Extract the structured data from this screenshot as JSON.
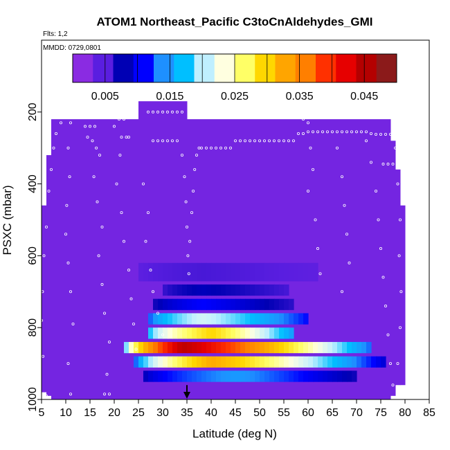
{
  "chart_data": {
    "type": "heatmap",
    "title": "ATOM1 Northeast_Pacific C3toCnAldehydes_GMI",
    "flights_label": "Flts: 1,2",
    "mmdd_label": "MMDD: 0729,0801",
    "xlabel": "Latitude (deg N)",
    "ylabel": "PSXC (mbar)",
    "xlim": [
      5,
      85
    ],
    "ylim": [
      1000,
      0
    ],
    "x_ticks": [
      5,
      10,
      15,
      20,
      25,
      30,
      35,
      40,
      45,
      50,
      55,
      60,
      65,
      70,
      75,
      80,
      85
    ],
    "y_ticks": [
      200,
      400,
      600,
      800,
      1000
    ],
    "colorbar": {
      "min": 0.0,
      "max": 0.05,
      "tick_values": [
        0.005,
        0.015,
        0.025,
        0.035,
        0.045
      ],
      "tick_labels": [
        "0.005",
        "0.015",
        "0.025",
        "0.035",
        "0.045"
      ],
      "colors": [
        "#8a2be2",
        "#5a1ee0",
        "#0000b4",
        "#0000ff",
        "#1e90ff",
        "#00bfff",
        "#bfefff",
        "#ffffe0",
        "#ffff66",
        "#ffd700",
        "#ffa500",
        "#ff7f00",
        "#ff3000",
        "#e60000",
        "#b40000",
        "#8b1a1a"
      ]
    },
    "columns": [
      {
        "lat": [
          5,
          6
        ],
        "top": 460,
        "bottom": 980,
        "cells": []
      },
      {
        "lat": [
          6,
          7
        ],
        "top": 320,
        "bottom": 990,
        "cells": []
      },
      {
        "lat": [
          7,
          25
        ],
        "top": 220,
        "bottom": 1000,
        "cells": []
      },
      {
        "lat": [
          25,
          30
        ],
        "top": 170,
        "bottom": 1000,
        "cells": []
      },
      {
        "lat": [
          30,
          35
        ],
        "top": 170,
        "bottom": 1000,
        "cells": []
      },
      {
        "lat": [
          35,
          77
        ],
        "top": 220,
        "bottom": 1000,
        "cells": []
      },
      {
        "lat": [
          77,
          78
        ],
        "top": 280,
        "bottom": 990,
        "cells": []
      },
      {
        "lat": [
          78,
          79
        ],
        "top": 360,
        "bottom": 960,
        "cells": []
      },
      {
        "lat": [
          79,
          80
        ],
        "top": 460,
        "bottom": 960,
        "cells": []
      }
    ],
    "bands": [
      {
        "lat": [
          22,
          73
        ],
        "p": [
          840,
          870
        ],
        "lat_peak": 34,
        "peak": 0.046,
        "edge": 0.012
      },
      {
        "lat": [
          24,
          76
        ],
        "p": [
          880,
          910
        ],
        "lat_peak": 40,
        "peak": 0.033,
        "edge": 0.008
      },
      {
        "lat": [
          26,
          70
        ],
        "p": [
          920,
          950
        ],
        "lat_peak": 45,
        "peak": 0.014,
        "edge": 0.006
      },
      {
        "lat": [
          27,
          60
        ],
        "p": [
          760,
          790
        ],
        "lat_peak": 38,
        "peak": 0.021,
        "edge": 0.01
      },
      {
        "lat": [
          27,
          57
        ],
        "p": [
          800,
          830
        ],
        "lat_peak": 40,
        "peak": 0.03,
        "edge": 0.014
      },
      {
        "lat": [
          28,
          57
        ],
        "p": [
          720,
          750
        ],
        "lat_peak": 38,
        "peak": 0.01,
        "edge": 0.005
      },
      {
        "lat": [
          30,
          56
        ],
        "p": [
          680,
          710
        ],
        "lat_peak": 38,
        "peak": 0.007,
        "edge": 0.004
      },
      {
        "lat": [
          25,
          62
        ],
        "p": [
          620,
          670
        ],
        "lat_peak": 38,
        "peak": 0.004,
        "edge": 0.003
      }
    ],
    "flight_track": [
      [
        27,
        200
      ],
      [
        28,
        200
      ],
      [
        29,
        200
      ],
      [
        30,
        200
      ],
      [
        31,
        200
      ],
      [
        32,
        200
      ],
      [
        33,
        200
      ],
      [
        34,
        200
      ],
      [
        28,
        280
      ],
      [
        29,
        280
      ],
      [
        30,
        280
      ],
      [
        31,
        280
      ],
      [
        32,
        280
      ],
      [
        33,
        280
      ],
      [
        34,
        320
      ],
      [
        34.5,
        380
      ],
      [
        34.8,
        450
      ],
      [
        35,
        520
      ],
      [
        35.2,
        600
      ],
      [
        35.4,
        650
      ],
      [
        35.6,
        560
      ],
      [
        36,
        480
      ],
      [
        36.3,
        420
      ],
      [
        36.6,
        360
      ],
      [
        37,
        320
      ],
      [
        37.5,
        300
      ],
      [
        38,
        300
      ],
      [
        39,
        300
      ],
      [
        40,
        300
      ],
      [
        41,
        300
      ],
      [
        42,
        300
      ],
      [
        43,
        300
      ],
      [
        44,
        300
      ],
      [
        45,
        280
      ],
      [
        46,
        280
      ],
      [
        47,
        280
      ],
      [
        48,
        280
      ],
      [
        49,
        280
      ],
      [
        50,
        280
      ],
      [
        51,
        280
      ],
      [
        52,
        280
      ],
      [
        53,
        280
      ],
      [
        54,
        280
      ],
      [
        55,
        280
      ],
      [
        56,
        280
      ],
      [
        57,
        280
      ],
      [
        58,
        260
      ],
      [
        59,
        260
      ],
      [
        60,
        255
      ],
      [
        61,
        255
      ],
      [
        62,
        255
      ],
      [
        63,
        255
      ],
      [
        64,
        255
      ],
      [
        65,
        255
      ],
      [
        66,
        255
      ],
      [
        67,
        255
      ],
      [
        68,
        255
      ],
      [
        69,
        255
      ],
      [
        70,
        255
      ],
      [
        71,
        255
      ],
      [
        72,
        255
      ],
      [
        73,
        260
      ],
      [
        74,
        262
      ],
      [
        75,
        262
      ],
      [
        76,
        262
      ],
      [
        77,
        262
      ],
      [
        75.5,
        345
      ],
      [
        76.5,
        345
      ],
      [
        77.5,
        345
      ],
      [
        9,
        230
      ],
      [
        8,
        260
      ],
      [
        7.5,
        300
      ],
      [
        7,
        360
      ],
      [
        6.5,
        420
      ],
      [
        6,
        520
      ],
      [
        5.5,
        600
      ],
      [
        5.2,
        700
      ],
      [
        5,
        780
      ],
      [
        5.3,
        880
      ],
      [
        5.5,
        990
      ],
      [
        6,
        990
      ],
      [
        11,
        230
      ],
      [
        10.5,
        300
      ],
      [
        10.8,
        380
      ],
      [
        10.2,
        460
      ],
      [
        10,
        540
      ],
      [
        10.5,
        620
      ],
      [
        11,
        700
      ],
      [
        11.5,
        790
      ],
      [
        10.5,
        900
      ],
      [
        11,
        985
      ],
      [
        14,
        240
      ],
      [
        15,
        240
      ],
      [
        16,
        240
      ],
      [
        14.5,
        270
      ],
      [
        15.5,
        280
      ],
      [
        16.3,
        300
      ],
      [
        17,
        320
      ],
      [
        15.8,
        380
      ],
      [
        16.5,
        450
      ],
      [
        17.5,
        520
      ],
      [
        16.8,
        600
      ],
      [
        17.5,
        680
      ],
      [
        18,
        760
      ],
      [
        19,
        840
      ],
      [
        18.5,
        930
      ],
      [
        18,
        985
      ],
      [
        19,
        985
      ],
      [
        20,
        240
      ],
      [
        21,
        220
      ],
      [
        22,
        220
      ],
      [
        21.5,
        270
      ],
      [
        22.5,
        270
      ],
      [
        23,
        270
      ],
      [
        21.2,
        320
      ],
      [
        20.5,
        400
      ],
      [
        21.5,
        480
      ],
      [
        22,
        560
      ],
      [
        23,
        640
      ],
      [
        23.5,
        720
      ],
      [
        24,
        790
      ],
      [
        24.5,
        860
      ],
      [
        26,
        400
      ],
      [
        27,
        480
      ],
      [
        26.5,
        560
      ],
      [
        27.5,
        640
      ],
      [
        28,
        700
      ],
      [
        29,
        760
      ],
      [
        30,
        820
      ],
      [
        59,
        220
      ],
      [
        60,
        230
      ],
      [
        60.5,
        300
      ],
      [
        61,
        360
      ],
      [
        60,
        420
      ],
      [
        61.5,
        500
      ],
      [
        62,
        580
      ],
      [
        62.5,
        650
      ],
      [
        66,
        300
      ],
      [
        67,
        380
      ],
      [
        67.5,
        460
      ],
      [
        68,
        540
      ],
      [
        68.5,
        620
      ],
      [
        67,
        700
      ],
      [
        72,
        280
      ],
      [
        73,
        340
      ],
      [
        74,
        420
      ],
      [
        74.5,
        500
      ],
      [
        75,
        580
      ],
      [
        75.5,
        660
      ],
      [
        76,
        740
      ],
      [
        76.5,
        820
      ],
      [
        77,
        900
      ],
      [
        77.5,
        960
      ],
      [
        78,
        300
      ],
      [
        78.5,
        400
      ],
      [
        79,
        500
      ],
      [
        78.8,
        600
      ],
      [
        79.2,
        700
      ],
      [
        79,
        800
      ],
      [
        78.5,
        900
      ]
    ],
    "marker_lat": 35
  }
}
